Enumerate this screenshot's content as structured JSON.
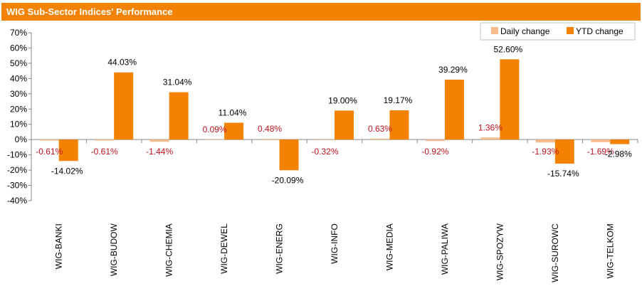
{
  "title": "WIG Sub-Sector Indices' Performance",
  "colors": {
    "title_bg": "#f38200",
    "daily": "#f8bc8c",
    "ytd": "#f38200",
    "daily_label": "#c0121c",
    "ytd_label": "#000000"
  },
  "chart_data": {
    "type": "bar",
    "categories": [
      "WIG-BANKI",
      "WIG-BUDOW",
      "WIG-CHEMIA",
      "WIG-DEWEL",
      "WIG-ENERG",
      "WIG-INFO",
      "WIG-MEDIA",
      "WIG-PALIWA",
      "WIG-SPOZYW",
      "WIG-SUROWC",
      "WIG-TELKOM"
    ],
    "series": [
      {
        "name": "Daily change",
        "values": [
          -0.61,
          -0.61,
          -1.44,
          0.09,
          0.48,
          -0.32,
          0.63,
          -0.92,
          1.36,
          -1.93,
          -1.69
        ],
        "labels": [
          "-0.61%",
          "-0.61%",
          "-1.44%",
          "0.09%",
          "0.48%",
          "-0.32%",
          "0.63%",
          "-0.92%",
          "1.36%",
          "-1.93%",
          "-1.69%"
        ]
      },
      {
        "name": "YTD change",
        "values": [
          -14.02,
          44.03,
          31.04,
          11.04,
          -20.09,
          19.0,
          19.17,
          39.29,
          52.6,
          -15.74,
          -2.98
        ],
        "labels": [
          "-14.02%",
          "44.03%",
          "31.04%",
          "11.04%",
          "-20.09%",
          "19.00%",
          "19.17%",
          "39.29%",
          "52.60%",
          "-15.74%",
          "-2.98%"
        ]
      }
    ],
    "yticks": [
      "70%",
      "60%",
      "50%",
      "40%",
      "30%",
      "20%",
      "10%",
      "0%",
      "-10%",
      "-20%",
      "-30%",
      "-40%"
    ],
    "ylim": [
      -40,
      70
    ],
    "legend_position": "top-right",
    "grid": false
  }
}
